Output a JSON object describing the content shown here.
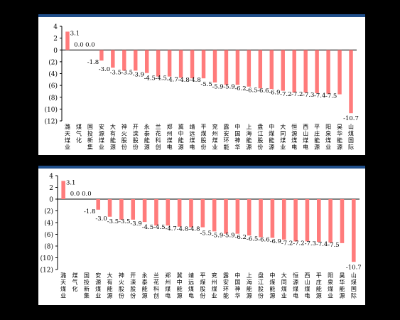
{
  "chart_data": [
    {
      "type": "bar",
      "categories": [
        "潞天煤业",
        "煤气化",
        "国投新集",
        "安源煤业",
        "大有能源",
        "神火股份",
        "开滦股份",
        "永泰能源",
        "兰花科创",
        "郑州煤电",
        "冀中能源",
        "靖远煤电",
        "平煤股份",
        "兖州煤业",
        "露安环能",
        "中国神华",
        "上海能源",
        "盘江股份",
        "中煤能源",
        "大同煤业",
        "恒源煤电",
        "西山煤电",
        "平庄能源",
        "阳泉煤业",
        "昊华能源",
        "山煤国际"
      ],
      "values": [
        3.1,
        0.0,
        0.0,
        -1.8,
        -3.0,
        -3.5,
        -3.5,
        -3.9,
        -4.5,
        -4.5,
        -4.7,
        -4.8,
        -4.8,
        -5.5,
        -5.9,
        -5.9,
        -6.2,
        -6.5,
        -6.6,
        -6.9,
        -7.2,
        -7.2,
        -7.3,
        -7.4,
        -7.5,
        -10.7
      ],
      "value_labels": [
        "3.1",
        "0.0",
        "0.0",
        "-1.8",
        "-3.0",
        "-3.5",
        "-3.5",
        "-3.9",
        "-4.5",
        "-4.5",
        "-4.7",
        "-4.8",
        "-4.8",
        "-5.5",
        "-5.9",
        "-5.9",
        "-6.2",
        "-6.5",
        "-6.6",
        "-6.9",
        "-7.2",
        "-7.2",
        "-7.3",
        "-7.4",
        "-7.5",
        "-10.7"
      ],
      "ylim": [
        -12,
        4
      ],
      "y_ticks": [
        4,
        2,
        0,
        -2,
        -4,
        -6,
        -8,
        -10,
        -12
      ],
      "y_tick_labels": [
        "4",
        "2",
        "0",
        "(2)",
        "(4)",
        "(6)",
        "(8)",
        "(10)",
        "(12)"
      ],
      "title": "",
      "xlabel": "",
      "ylabel": "",
      "bar_color": "#ff7b7b",
      "grid": false
    },
    {
      "type": "bar",
      "categories": [
        "潞天煤业",
        "煤气化",
        "国投新集",
        "安源煤业",
        "大有能源",
        "神火股份",
        "开滦股份",
        "永泰能源",
        "兰花科创",
        "郑州煤电",
        "冀中能源",
        "靖远煤电",
        "平煤股份",
        "兖州煤业",
        "露安环能",
        "中国神华",
        "上海能源",
        "盘江股份",
        "中煤能源",
        "大同煤业",
        "恒源煤电",
        "西山煤电",
        "平庄能源",
        "阳泉煤业",
        "昊华能源",
        "山煤国际"
      ],
      "values": [
        3.1,
        0.0,
        0.0,
        -1.8,
        -3.0,
        -3.5,
        -3.5,
        -3.9,
        -4.5,
        -4.5,
        -4.7,
        -4.8,
        -4.8,
        -5.5,
        -5.9,
        -5.9,
        -6.2,
        -6.5,
        -6.6,
        -6.9,
        -7.2,
        -7.2,
        -7.3,
        -7.4,
        -7.5,
        -10.7
      ],
      "value_labels": [
        "3.1",
        "0.0",
        "0.0",
        "-1.8",
        "-3.0",
        "-3.5",
        "-3.5",
        "-3.9",
        "-4.5",
        "-4.5",
        "-4.7",
        "-4.8",
        "-4.8",
        "-5.5",
        "-5.9",
        "-5.9",
        "-6.2",
        "-6.5",
        "-6.6",
        "-6.9",
        "-7.2",
        "-7.2",
        "-7.3",
        "-7.4",
        "-7.5",
        "-10.7"
      ],
      "ylim": [
        -12,
        4
      ],
      "y_ticks": [
        4,
        2,
        0,
        -2,
        -4,
        -6,
        -8,
        -10,
        -12
      ],
      "y_tick_labels": [
        "4",
        "2",
        "0",
        "(2)",
        "(4)",
        "(6)",
        "(8)",
        "(10)",
        "(12)"
      ],
      "title": "",
      "xlabel": "",
      "ylabel": "",
      "bar_color": "#ff7b7b",
      "grid": false
    }
  ]
}
